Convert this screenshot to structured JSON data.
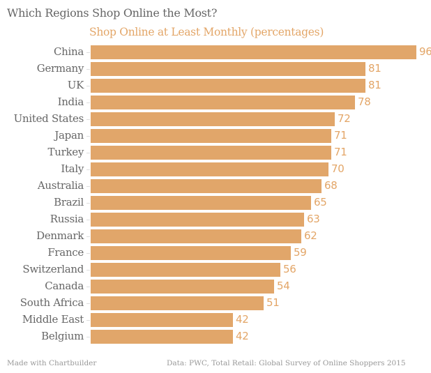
{
  "title": "Which Regions Shop Online the Most?",
  "subtitle": "Shop Online at Least Monthly (percentages)",
  "footer": {
    "left": "Made with Chartbuilder",
    "right": "Data: PWC, Total Retail: Global Survey of Online Shoppers 2015"
  },
  "colors": {
    "bar": "#e1a66a",
    "value_label": "#e3a668",
    "title": "#666666",
    "footer": "#999999"
  },
  "chart_data": {
    "type": "bar",
    "orientation": "horizontal",
    "title": "Which Regions Shop Online the Most?",
    "subtitle": "Shop Online at Least Monthly (percentages)",
    "xlabel": "",
    "ylabel": "",
    "xlim": [
      0,
      96
    ],
    "grid": false,
    "legend": null,
    "data_labels": true,
    "categories": [
      "China",
      "Germany",
      "UK",
      "India",
      "United States",
      "Japan",
      "Turkey",
      "Italy",
      "Australia",
      "Brazil",
      "Russia",
      "Denmark",
      "France",
      "Switzerland",
      "Canada",
      "South Africa",
      "Middle East",
      "Belgium"
    ],
    "values": [
      96,
      81,
      81,
      78,
      72,
      71,
      71,
      70,
      68,
      65,
      63,
      62,
      59,
      56,
      54,
      51,
      42,
      42
    ],
    "source": "Data: PWC, Total Retail: Global Survey of Online Shoppers 2015"
  }
}
